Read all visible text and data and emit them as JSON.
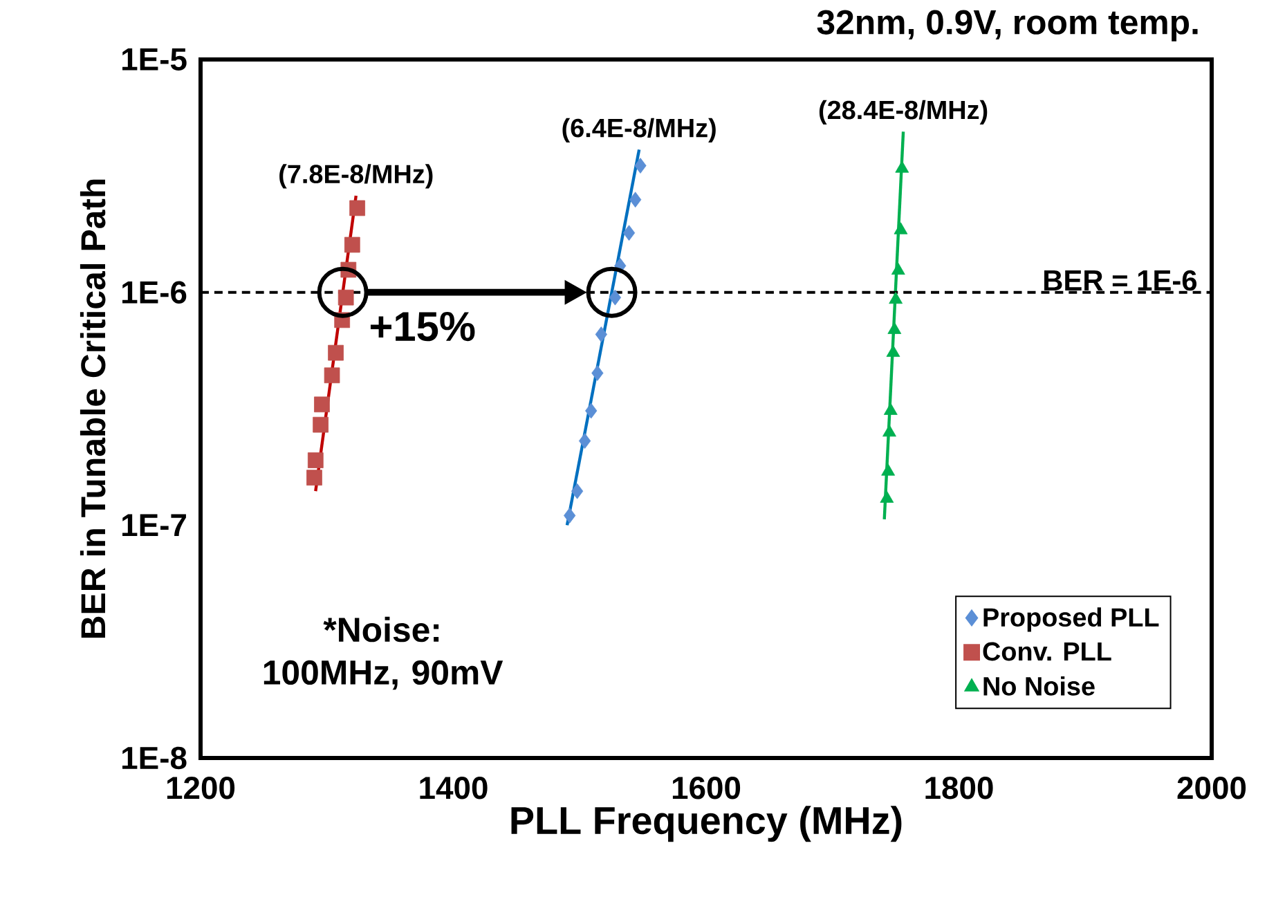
{
  "chart_data": {
    "type": "scatter",
    "title": "32nm, 0.9V, room temp.",
    "xlabel": "PLL Frequency (MHz)",
    "ylabel": "BER in Tunable Critical Path",
    "log": "y",
    "legend": "bottom right",
    "xlim": [
      1200,
      2000
    ],
    "xticks": [
      1200,
      1400,
      1600,
      1800,
      2000
    ],
    "ylim": [
      1e-08,
      1e-05
    ],
    "yticks": [
      {
        "value": 1e-08,
        "label": "1E-8"
      },
      {
        "value": 1e-07,
        "label": "1E-7"
      },
      {
        "value": 1e-06,
        "label": "1E-6"
      },
      {
        "value": 1e-05,
        "label": "1E-5"
      }
    ],
    "series": [
      {
        "name": "Proposed PLL",
        "marker": "diamond",
        "color": "#5b8fd6",
        "x": [
          1548,
          1544,
          1539,
          1532,
          1528,
          1517,
          1514,
          1509,
          1504,
          1498,
          1492
        ],
        "values": [
          3.5e-06,
          2.5e-06,
          1.8e-06,
          1.3e-06,
          9.5e-07,
          6.6e-07,
          4.5e-07,
          3.1e-07,
          2.3e-07,
          1.4e-07,
          1.1e-07
        ]
      },
      {
        "name": "Conv. PLL",
        "marker": "square",
        "color": "#c0504d",
        "x": [
          1324,
          1320,
          1317,
          1315,
          1312,
          1307,
          1304,
          1296,
          1295,
          1291,
          1290
        ],
        "values": [
          2.3e-06,
          1.6e-06,
          1.25e-06,
          9.5e-07,
          7.6e-07,
          5.5e-07,
          4.4e-07,
          3.3e-07,
          2.7e-07,
          1.9e-07,
          1.6e-07
        ]
      },
      {
        "name": "No Noise",
        "marker": "triangle",
        "color": "#00b050",
        "x": [
          1755,
          1754,
          1752,
          1750,
          1749,
          1748,
          1746,
          1745,
          1744,
          1743
        ],
        "values": [
          3.4e-06,
          1.85e-06,
          1.24e-06,
          9.3e-07,
          6.9e-07,
          5.5e-07,
          3.1e-07,
          2.5e-07,
          1.7e-07,
          1.3e-07
        ]
      },
      {
        "type": "line",
        "marker": "none",
        "color": "#c00000",
        "x": [
          1291,
          1323
        ],
        "values": [
          1.4e-07,
          2.6e-06
        ]
      },
      {
        "type": "line",
        "marker": "none",
        "color": "#0070c0",
        "x": [
          1490,
          1547
        ],
        "values": [
          1e-07,
          4.1e-06
        ]
      },
      {
        "type": "line",
        "marker": "none",
        "color": "#00b050",
        "x": [
          1741,
          1756
        ],
        "values": [
          1.06e-07,
          4.9e-06
        ]
      }
    ],
    "ref_lines": [
      {
        "axis": "y",
        "value": 1e-06,
        "label": "BER = 1E-6",
        "color": "#000000",
        "line_style": "dashed"
      }
    ],
    "annotations": [
      {
        "text": "(7.8E-8/MHz)",
        "x": 1323,
        "y": 2.6e-06
      },
      {
        "text": "(6.4E-8/MHz)",
        "x": 1547,
        "y": 4.1e-06
      },
      {
        "text": "(28.4E-8/MHz)",
        "x": 1756,
        "y": 4.9e-06
      },
      {
        "text": "+15%",
        "x": 1333,
        "y": 1e-06
      },
      "*Noise: 100MHz, 90mV"
    ]
  }
}
